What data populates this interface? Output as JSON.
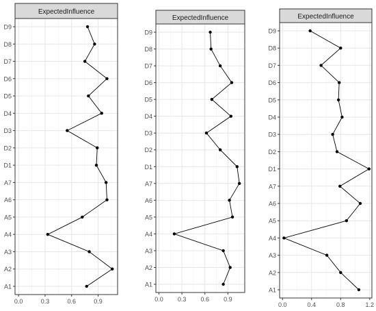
{
  "colors": {
    "strip_fill": "#d9d9d9",
    "strip_border": "#333333",
    "panel_border": "#333333",
    "grid_major": "#e6e6e6",
    "grid_minor": "#f2f2f2",
    "line": "#000000",
    "point": "#000000",
    "tick_label": "#4d4d4d",
    "strip_text": "#1a1a1a"
  },
  "chart_data": [
    {
      "type": "line",
      "orientation": "horizontal",
      "title": "ExpectedInfluence",
      "categories": [
        "A1",
        "A2",
        "A3",
        "A4",
        "A5",
        "A6",
        "A7",
        "D1",
        "D2",
        "D3",
        "D4",
        "D5",
        "D6",
        "D7",
        "D8",
        "D9"
      ],
      "series": [
        {
          "values": [
            0.77,
            1.06,
            0.8,
            0.33,
            0.72,
            1.0,
            0.99,
            0.88,
            0.89,
            0.55,
            0.94,
            0.79,
            1.0,
            0.75,
            0.86,
            0.78
          ]
        }
      ],
      "xticks": [
        "0.0",
        "0.3",
        "0.6",
        "0.9"
      ],
      "xtick_values": [
        0.0,
        0.3,
        0.6,
        0.9
      ],
      "xlim": [
        -0.04,
        1.12
      ],
      "grid": true
    },
    {
      "type": "line",
      "orientation": "horizontal",
      "title": "ExpectedInfluence",
      "categories": [
        "A1",
        "A2",
        "A3",
        "A4",
        "A5",
        "A6",
        "A7",
        "D1",
        "D2",
        "D3",
        "D4",
        "D5",
        "D6",
        "D7",
        "D8",
        "D9"
      ],
      "series": [
        {
          "values": [
            0.84,
            0.93,
            0.84,
            0.2,
            0.96,
            0.92,
            1.05,
            1.02,
            0.8,
            0.62,
            0.94,
            0.69,
            0.95,
            0.8,
            0.68,
            0.67
          ]
        }
      ],
      "xticks": [
        "0.0",
        "0.3",
        "0.6",
        "0.9"
      ],
      "xtick_values": [
        0.0,
        0.3,
        0.6,
        0.9
      ],
      "xlim": [
        -0.04,
        1.12
      ],
      "grid": true
    },
    {
      "type": "line",
      "orientation": "horizontal",
      "title": "ExpectedInfluence",
      "categories": [
        "A1",
        "A2",
        "A3",
        "A4",
        "A5",
        "A6",
        "A7",
        "D1",
        "D2",
        "D3",
        "D4",
        "D5",
        "D6",
        "D7",
        "D8",
        "D9"
      ],
      "series": [
        {
          "values": [
            1.05,
            0.8,
            0.61,
            0.02,
            0.88,
            1.07,
            0.79,
            1.19,
            0.75,
            0.69,
            0.82,
            0.77,
            0.78,
            0.53,
            0.8,
            0.38
          ]
        }
      ],
      "xticks": [
        "0.0",
        "0.4",
        "0.8",
        "1.2"
      ],
      "xtick_values": [
        0.0,
        0.4,
        0.8,
        1.2
      ],
      "xlim": [
        -0.04,
        1.23
      ],
      "grid": true
    }
  ]
}
